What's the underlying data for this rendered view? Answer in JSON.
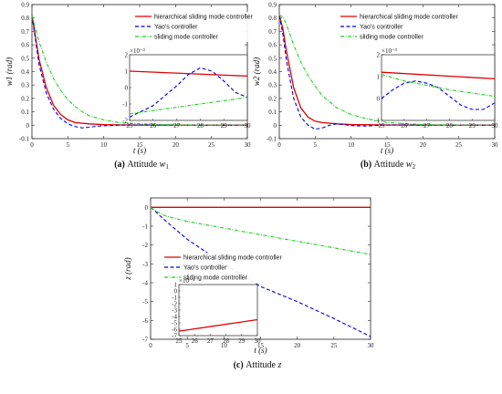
{
  "colors": {
    "hsmc": "#e00000",
    "yao": "#0000e0",
    "smc": "#22cc22",
    "axis": "#222222"
  },
  "chart_data": [
    {
      "type": "line",
      "caption_label": "(a)",
      "caption_text": "Attitude",
      "caption_var": "w1",
      "xlabel": "t (s)",
      "ylabel": "w1 (rad)",
      "xlim": [
        0,
        30
      ],
      "ylim": [
        -0.1,
        0.9
      ],
      "xticks": [
        "0",
        "5",
        "10",
        "15",
        "20",
        "25",
        "30"
      ],
      "yticks": [
        "-0.1",
        "0",
        "0.1",
        "0.2",
        "0.3",
        "0.4",
        "0.5",
        "0.6",
        "0.7",
        "0.8",
        "0.9"
      ],
      "legend": [
        "hierarchical sliding mode controller",
        "Yao's controller",
        "sliding mode controller"
      ],
      "legend_position": "top-right",
      "series": [
        {
          "name": "hierarchical sliding mode controller",
          "x": [
            0,
            1,
            2,
            3,
            4,
            5,
            6,
            8,
            10,
            15,
            20,
            25,
            30
          ],
          "y": [
            0.82,
            0.49,
            0.28,
            0.15,
            0.08,
            0.04,
            0.02,
            0.01,
            0.004,
            0.001,
            0.001,
            0.001,
            0.001
          ]
        },
        {
          "name": "Yao's controller",
          "x": [
            0,
            1,
            2,
            3,
            4,
            5,
            6,
            7,
            8,
            9,
            10,
            12,
            15,
            20,
            25,
            30
          ],
          "y": [
            0.82,
            0.45,
            0.24,
            0.12,
            0.05,
            0.01,
            -0.01,
            -0.02,
            -0.015,
            -0.008,
            -0.004,
            0.0,
            0.002,
            0.001,
            0.0,
            0.0
          ]
        },
        {
          "name": "sliding mode controller",
          "x": [
            0,
            1,
            2,
            3,
            4,
            5,
            6,
            7,
            8,
            10,
            12,
            15,
            20,
            25,
            30
          ],
          "y": [
            0.82,
            0.62,
            0.47,
            0.35,
            0.26,
            0.19,
            0.14,
            0.1,
            0.07,
            0.04,
            0.02,
            0.01,
            0.003,
            0.001,
            0.0
          ]
        }
      ],
      "inset": {
        "xlim": [
          25,
          30
        ],
        "ylim": [
          -2,
          2
        ],
        "xticks": [
          "25",
          "26",
          "27",
          "28",
          "29",
          "30"
        ],
        "yticks": [
          "-2",
          "-1",
          "0",
          "1",
          "2"
        ],
        "exponent": "×10⁻³",
        "series": [
          {
            "name": "hierarchical sliding mode controller",
            "x": [
              25,
              30
            ],
            "y": [
              1.0,
              0.7
            ]
          },
          {
            "name": "Yao's controller",
            "x": [
              25,
              26,
              27,
              27.5,
              28,
              28.5,
              29,
              29.5,
              30
            ],
            "y": [
              -1.8,
              -1.1,
              0.1,
              0.8,
              1.2,
              1.0,
              0.4,
              -0.3,
              -0.6
            ]
          },
          {
            "name": "sliding mode controller",
            "x": [
              25,
              26,
              27,
              28,
              29,
              30
            ],
            "y": [
              -1.6,
              -1.4,
              -1.2,
              -1.0,
              -0.8,
              -0.6
            ]
          }
        ]
      }
    },
    {
      "type": "line",
      "caption_label": "(b)",
      "caption_text": "Attitude",
      "caption_var": "w2",
      "xlabel": "t (s)",
      "ylabel": "w2 (rad)",
      "xlim": [
        0,
        30
      ],
      "ylim": [
        -0.1,
        0.9
      ],
      "xticks": [
        "0",
        "5",
        "10",
        "15",
        "20",
        "25",
        "30"
      ],
      "yticks": [
        "-0.1",
        "0",
        "0.1",
        "0.2",
        "0.3",
        "0.4",
        "0.5",
        "0.6",
        "0.7",
        "0.8",
        "0.9"
      ],
      "legend": [
        "hierarchical sliding mode controller",
        "Yao's controller",
        "sliding mode controller"
      ],
      "legend_position": "top-right",
      "series": [
        {
          "name": "hierarchical sliding mode controller",
          "x": [
            0,
            0.5,
            1,
            2,
            3,
            4,
            5,
            6,
            8,
            10,
            15,
            20,
            25,
            30
          ],
          "y": [
            0.82,
            0.72,
            0.55,
            0.28,
            0.13,
            0.06,
            0.03,
            0.02,
            0.01,
            0.005,
            0.002,
            0.001,
            0.001,
            0.001
          ]
        },
        {
          "name": "Yao's controller",
          "x": [
            0,
            0.5,
            1,
            2,
            3,
            4,
            5,
            6,
            7,
            8,
            9,
            10,
            12,
            15,
            20,
            25,
            30
          ],
          "y": [
            0.82,
            0.68,
            0.48,
            0.2,
            0.06,
            0.0,
            -0.03,
            -0.02,
            0.0,
            0.01,
            0.005,
            -0.003,
            -0.006,
            0.002,
            0.001,
            0.0,
            0.0
          ]
        },
        {
          "name": "sliding mode controller",
          "x": [
            0,
            0.5,
            1,
            2,
            3,
            4,
            5,
            6,
            8,
            10,
            12,
            15,
            20,
            25,
            30
          ],
          "y": [
            0.82,
            0.81,
            0.75,
            0.6,
            0.47,
            0.37,
            0.29,
            0.22,
            0.13,
            0.08,
            0.05,
            0.02,
            0.005,
            0.001,
            0.0
          ]
        }
      ],
      "inset": {
        "xlim": [
          25,
          30
        ],
        "ylim": [
          -1,
          2
        ],
        "xticks": [
          "25",
          "26",
          "27",
          "28",
          "29",
          "30"
        ],
        "yticks": [
          "-1",
          "0",
          "1",
          "2"
        ],
        "exponent": "×10⁻³",
        "series": [
          {
            "name": "hierarchical sliding mode controller",
            "x": [
              25,
              30
            ],
            "y": [
              1.2,
              0.9
            ]
          },
          {
            "name": "Yao's controller",
            "x": [
              25,
              25.5,
              26,
              26.5,
              27,
              27.5,
              28,
              28.5,
              29,
              29.5,
              30
            ],
            "y": [
              0.0,
              0.4,
              0.7,
              0.8,
              0.7,
              0.5,
              0.1,
              -0.3,
              -0.5,
              -0.5,
              -0.2
            ]
          },
          {
            "name": "sliding mode controller",
            "x": [
              25,
              26,
              27,
              28,
              29,
              30
            ],
            "y": [
              1.1,
              0.8,
              0.6,
              0.4,
              0.25,
              0.1
            ]
          }
        ]
      }
    },
    {
      "type": "line",
      "caption_label": "(c)",
      "caption_text": "Attitude",
      "caption_var": "z",
      "xlabel": "t (s)",
      "ylabel": "z (rad)",
      "xlim": [
        0,
        30
      ],
      "ylim": [
        -7,
        0.5
      ],
      "xticks": [
        "0",
        "5",
        "10",
        "15",
        "20",
        "25",
        "30"
      ],
      "yticks": [
        "-7",
        "-6",
        "-5",
        "-4",
        "-3",
        "-2",
        "-1",
        "0"
      ],
      "legend": [
        "hierarchical sliding mode controller",
        "Yao's controller",
        "sliding mode controller"
      ],
      "legend_position": "center-left",
      "series": [
        {
          "name": "hierarchical sliding mode controller",
          "x": [
            0,
            30
          ],
          "y": [
            0.0,
            0.0
          ]
        },
        {
          "name": "Yao's controller",
          "x": [
            0,
            0.5,
            1,
            2,
            5,
            10,
            15,
            20,
            25,
            30
          ],
          "y": [
            0.0,
            -0.15,
            -0.35,
            -0.7,
            -1.7,
            -3.0,
            -4.2,
            -5.0,
            -5.9,
            -6.85
          ]
        },
        {
          "name": "sliding mode controller",
          "x": [
            0,
            0.5,
            1,
            2,
            5,
            10,
            15,
            20,
            25,
            30
          ],
          "y": [
            0.0,
            -0.12,
            -0.25,
            -0.45,
            -0.75,
            -1.1,
            -1.45,
            -1.8,
            -2.15,
            -2.5
          ]
        }
      ],
      "inset": {
        "xlim": [
          25,
          30
        ],
        "ylim": [
          -7,
          1
        ],
        "xticks": [
          "25",
          "26",
          "27",
          "28",
          "29",
          "30"
        ],
        "yticks": [
          "-7",
          "-6",
          "-5",
          "-4",
          "-3",
          "-2",
          "-1",
          "0",
          "1"
        ],
        "exponent": "×10⁻⁴",
        "series": [
          {
            "name": "hierarchical sliding mode controller",
            "x": [
              25,
              30
            ],
            "y": [
              -6.3,
              -4.5
            ]
          }
        ]
      }
    }
  ]
}
